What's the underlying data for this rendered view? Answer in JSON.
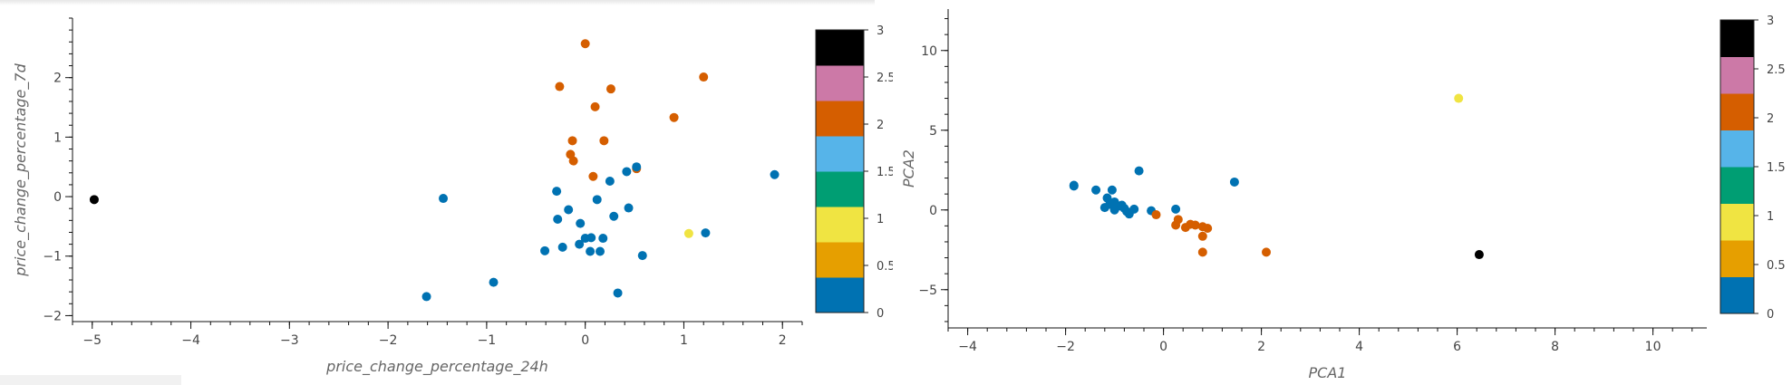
{
  "chart_data": [
    {
      "type": "scatter",
      "xlabel": "price_change_percentage_24h",
      "ylabel": "price_change_percentage_7d",
      "xlim": [
        -5.2,
        2.2
      ],
      "ylim": [
        -2.1,
        3.0
      ],
      "x_ticks": [
        -5,
        -4,
        -3,
        -2,
        -1,
        0,
        1,
        2
      ],
      "y_ticks": [
        -2,
        -1,
        0,
        1,
        2
      ],
      "color_by": "cluster",
      "colorbar": {
        "range": [
          0,
          3
        ],
        "ticks": [
          "0",
          "0.5",
          "1",
          "1.5",
          "2",
          "2.5",
          "3"
        ],
        "colors": [
          "#0072b2",
          "#e69f00",
          "#f0e442",
          "#009e73",
          "#56b4e9",
          "#d55e00",
          "#cc79a7",
          "#000000"
        ]
      },
      "points": [
        {
          "x": -4.98,
          "y": -0.05,
          "cluster": 3
        },
        {
          "x": 1.05,
          "y": -0.62,
          "cluster": 1
        },
        {
          "x": 0.0,
          "y": 2.57,
          "cluster": 2
        },
        {
          "x": -0.26,
          "y": 1.85,
          "cluster": 2
        },
        {
          "x": 0.26,
          "y": 1.81,
          "cluster": 2
        },
        {
          "x": 1.2,
          "y": 2.01,
          "cluster": 2
        },
        {
          "x": 0.1,
          "y": 1.51,
          "cluster": 2
        },
        {
          "x": 0.9,
          "y": 1.33,
          "cluster": 2
        },
        {
          "x": -0.13,
          "y": 0.94,
          "cluster": 2
        },
        {
          "x": 0.19,
          "y": 0.94,
          "cluster": 2
        },
        {
          "x": -0.15,
          "y": 0.71,
          "cluster": 2
        },
        {
          "x": -0.12,
          "y": 0.6,
          "cluster": 2
        },
        {
          "x": 0.08,
          "y": 0.34,
          "cluster": 2
        },
        {
          "x": 0.52,
          "y": 0.47,
          "cluster": 2
        },
        {
          "x": 0.52,
          "y": 0.5,
          "cluster": 0
        },
        {
          "x": 1.92,
          "y": 0.37,
          "cluster": 0
        },
        {
          "x": 0.42,
          "y": 0.42,
          "cluster": 0
        },
        {
          "x": 0.25,
          "y": 0.26,
          "cluster": 0
        },
        {
          "x": -0.29,
          "y": 0.09,
          "cluster": 0
        },
        {
          "x": 0.12,
          "y": -0.05,
          "cluster": 0
        },
        {
          "x": -1.44,
          "y": -0.03,
          "cluster": 0
        },
        {
          "x": -0.17,
          "y": -0.22,
          "cluster": 0
        },
        {
          "x": 0.44,
          "y": -0.19,
          "cluster": 0
        },
        {
          "x": -0.28,
          "y": -0.38,
          "cluster": 0
        },
        {
          "x": 0.29,
          "y": -0.33,
          "cluster": 0
        },
        {
          "x": -0.05,
          "y": -0.45,
          "cluster": 0
        },
        {
          "x": 1.22,
          "y": -0.61,
          "cluster": 0
        },
        {
          "x": 0.0,
          "y": -0.7,
          "cluster": 0
        },
        {
          "x": 0.06,
          "y": -0.69,
          "cluster": 0
        },
        {
          "x": 0.18,
          "y": -0.7,
          "cluster": 0
        },
        {
          "x": -0.06,
          "y": -0.8,
          "cluster": 0
        },
        {
          "x": -0.23,
          "y": -0.85,
          "cluster": 0
        },
        {
          "x": -0.41,
          "y": -0.91,
          "cluster": 0
        },
        {
          "x": 0.05,
          "y": -0.92,
          "cluster": 0
        },
        {
          "x": 0.15,
          "y": -0.92,
          "cluster": 0
        },
        {
          "x": 0.58,
          "y": -0.99,
          "cluster": 0
        },
        {
          "x": -0.93,
          "y": -1.44,
          "cluster": 0
        },
        {
          "x": 0.33,
          "y": -1.62,
          "cluster": 0
        },
        {
          "x": -1.61,
          "y": -1.68,
          "cluster": 0
        }
      ]
    },
    {
      "type": "scatter",
      "xlabel": "PCA1",
      "ylabel": "PCA2",
      "xlim": [
        -4.4,
        11.1
      ],
      "ylim": [
        -7.4,
        12.6
      ],
      "x_ticks": [
        -4,
        -2,
        0,
        2,
        4,
        6,
        8,
        10
      ],
      "y_ticks": [
        -5,
        0,
        5,
        10
      ],
      "color_by": "cluster",
      "colorbar": {
        "range": [
          0,
          3
        ],
        "ticks": [
          "0",
          "0.5",
          "1",
          "1.5",
          "2",
          "2.5",
          "3"
        ],
        "colors": [
          "#0072b2",
          "#e69f00",
          "#f0e442",
          "#009e73",
          "#56b4e9",
          "#d55e00",
          "#cc79a7",
          "#000000"
        ]
      },
      "points": [
        {
          "x": 6.03,
          "y": 7.0,
          "cluster": 1
        },
        {
          "x": 6.45,
          "y": -2.8,
          "cluster": 3
        },
        {
          "x": -1.83,
          "y": 1.55,
          "cluster": 0
        },
        {
          "x": -1.83,
          "y": 1.5,
          "cluster": 0
        },
        {
          "x": -1.38,
          "y": 1.25,
          "cluster": 0
        },
        {
          "x": -1.05,
          "y": 1.25,
          "cluster": 0
        },
        {
          "x": -0.5,
          "y": 2.45,
          "cluster": 0
        },
        {
          "x": 1.45,
          "y": 1.75,
          "cluster": 0
        },
        {
          "x": -1.15,
          "y": 0.75,
          "cluster": 0
        },
        {
          "x": -1.0,
          "y": 0.5,
          "cluster": 0
        },
        {
          "x": -1.1,
          "y": 0.35,
          "cluster": 0
        },
        {
          "x": -0.9,
          "y": 0.25,
          "cluster": 0
        },
        {
          "x": -0.8,
          "y": 0.1,
          "cluster": 0
        },
        {
          "x": -1.2,
          "y": 0.15,
          "cluster": 0
        },
        {
          "x": -1.0,
          "y": 0.0,
          "cluster": 0
        },
        {
          "x": -0.75,
          "y": -0.1,
          "cluster": 0
        },
        {
          "x": -0.6,
          "y": 0.05,
          "cluster": 0
        },
        {
          "x": -0.7,
          "y": -0.25,
          "cluster": 0
        },
        {
          "x": -0.25,
          "y": -0.05,
          "cluster": 0
        },
        {
          "x": 0.25,
          "y": 0.05,
          "cluster": 0
        },
        {
          "x": -0.85,
          "y": 0.3,
          "cluster": 0
        },
        {
          "x": -0.15,
          "y": -0.3,
          "cluster": 2
        },
        {
          "x": 0.3,
          "y": -0.6,
          "cluster": 2
        },
        {
          "x": 0.25,
          "y": -0.95,
          "cluster": 2
        },
        {
          "x": 0.45,
          "y": -1.1,
          "cluster": 2
        },
        {
          "x": 0.55,
          "y": -0.9,
          "cluster": 2
        },
        {
          "x": 0.65,
          "y": -0.95,
          "cluster": 2
        },
        {
          "x": 0.8,
          "y": -1.05,
          "cluster": 2
        },
        {
          "x": 0.9,
          "y": -1.15,
          "cluster": 2
        },
        {
          "x": 0.8,
          "y": -1.65,
          "cluster": 2
        },
        {
          "x": 0.8,
          "y": -2.65,
          "cluster": 2
        },
        {
          "x": 2.1,
          "y": -2.65,
          "cluster": 2
        }
      ]
    }
  ]
}
